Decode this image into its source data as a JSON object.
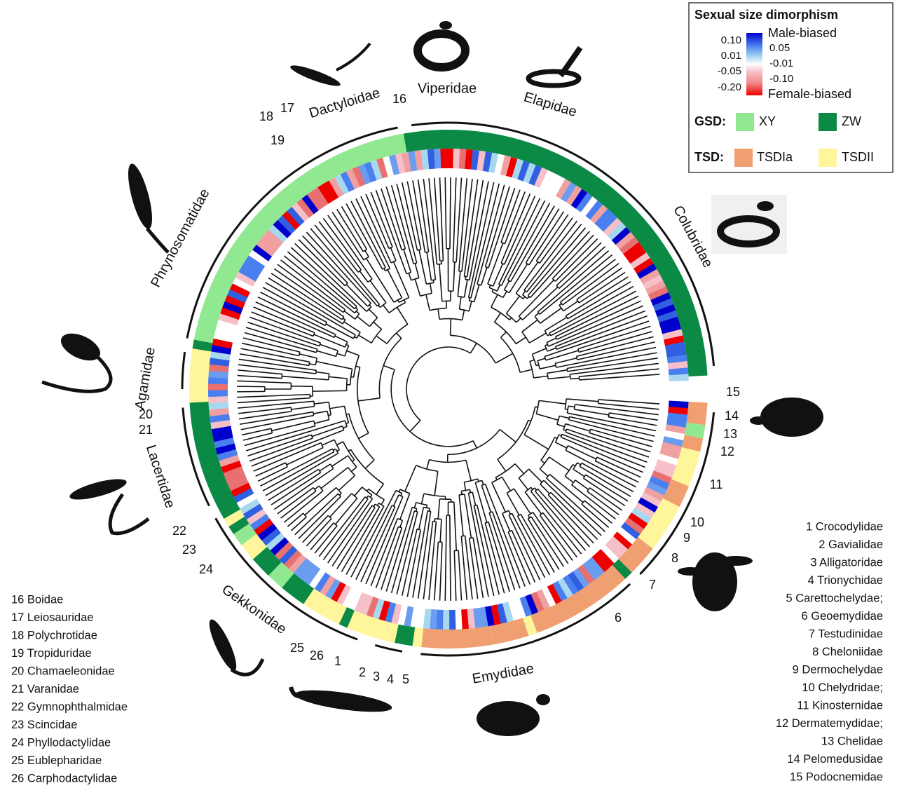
{
  "legend": {
    "title": "Sexual size dimorphism",
    "scale_left": [
      "0.10",
      "0.01",
      "-0.05",
      "-0.20"
    ],
    "scale_right": [
      "Male-biased",
      "0.05",
      "-0.01",
      "-0.10",
      "Female-biased"
    ],
    "gsd": {
      "label": "GSD:",
      "items": [
        "XY",
        "ZW"
      ]
    },
    "tsd": {
      "label": "TSD:",
      "items": [
        "TSDIa",
        "TSDII"
      ]
    }
  },
  "families": [
    "Dactyloidae",
    "Viperidae",
    "Elapidae",
    "Colubridae",
    "Phrynosomatidae",
    "Agamidae",
    "Lacertidae",
    "Gekkonidae",
    "Emydidae"
  ],
  "numbers": [
    "16",
    "17",
    "18",
    "19",
    "20",
    "21",
    "22",
    "23",
    "24",
    "25",
    "26",
    "1",
    "2",
    "3",
    "4",
    "5",
    "6",
    "7",
    "8",
    "9",
    "10",
    "11",
    "12",
    "13",
    "14",
    "15"
  ],
  "list_left": [
    "16 Boidae",
    "17 Leiosauridae",
    "18 Polychrotidae",
    "19 Tropiduridae",
    "20 Chamaeleonidae",
    "21 Varanidae",
    "22 Gymnophthalmidae",
    "23 Scincidae",
    "24 Phyllodactylidae",
    "25 Eublepharidae",
    "26 Carphodactylidae"
  ],
  "list_right": [
    "1 Crocodylidae",
    "2 Gavialidae",
    "3 Alligatoridae",
    "4 Trionychidae",
    "5 Carettochelydae;",
    "6 Geoemydidae",
    "7 Testudinidae",
    "8 Cheloniidae",
    "9 Dermochelydae",
    "10 Chelydridae;",
    "11 Kinosternidae",
    "12 Dermatemydidae;",
    "13 Chelidae",
    "14 Pelomedusidae",
    "15 Podocnemidae"
  ]
}
